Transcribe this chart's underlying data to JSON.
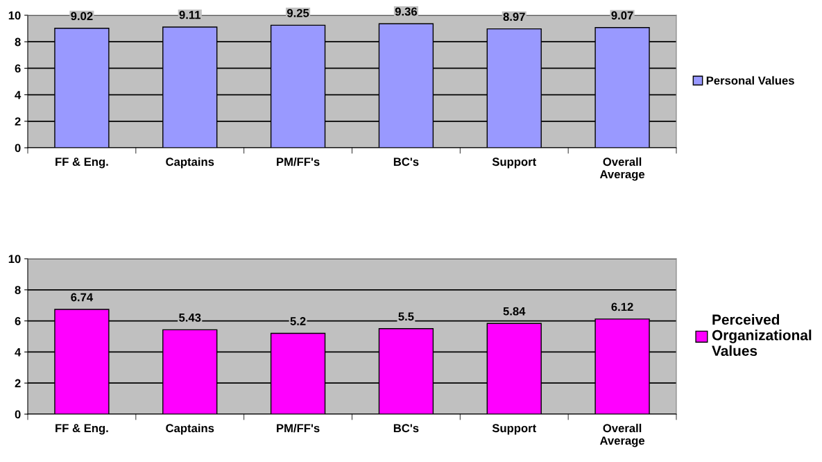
{
  "chart_data": [
    {
      "type": "bar",
      "categories": [
        "FF & Eng.",
        "Captains",
        "PM/FF's",
        "BC's",
        "Support",
        "Overall\nAverage"
      ],
      "series": [
        {
          "name": "Personal Values",
          "color": "#9999ff",
          "values": [
            9.02,
            9.11,
            9.25,
            9.36,
            8.97,
            9.07
          ]
        }
      ],
      "ylim": [
        0,
        10
      ],
      "yticks": [
        0,
        2,
        4,
        6,
        8,
        10
      ],
      "grid": "y",
      "legend": "right",
      "data_labels": true
    },
    {
      "type": "bar",
      "categories": [
        "FF & Eng.",
        "Captains",
        "PM/FF's",
        "BC's",
        "Support",
        "Overall\nAverage"
      ],
      "series": [
        {
          "name": "Perceived\nOrganizational\nValues",
          "color": "#ff00ff",
          "values": [
            6.74,
            5.43,
            5.2,
            5.5,
            5.84,
            6.12
          ]
        }
      ],
      "ylim": [
        0,
        10
      ],
      "yticks": [
        0,
        2,
        4,
        6,
        8,
        10
      ],
      "grid": "y",
      "legend": "right",
      "data_labels": true
    }
  ]
}
